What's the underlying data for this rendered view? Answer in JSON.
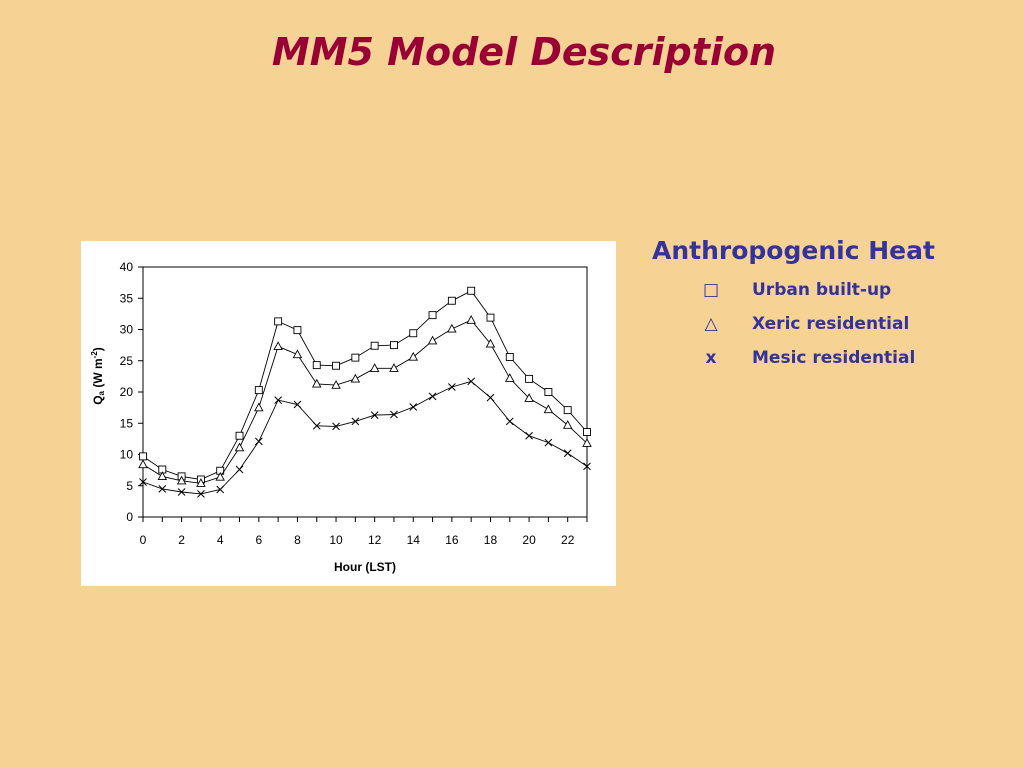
{
  "slide": {
    "title": "MM5 Model Description"
  },
  "legend": {
    "heading": "Anthropogenic Heat",
    "items": [
      {
        "marker": "□",
        "marker_icon": "square-marker-icon",
        "label": "Urban built-up"
      },
      {
        "marker": "△",
        "marker_icon": "triangle-marker-icon",
        "label": "Xeric residential"
      },
      {
        "marker": "x",
        "marker_icon": "cross-marker-icon",
        "label": "Mesic residential"
      }
    ]
  },
  "chart_data": {
    "type": "line",
    "title": "",
    "xlabel": "Hour (LST)",
    "ylabel_main": "Q",
    "ylabel_sub": "a",
    "ylabel_unit": " (W m",
    "ylabel_sup": "-2",
    "ylabel_close": ")",
    "xlim": [
      0,
      23
    ],
    "ylim": [
      0,
      40
    ],
    "x_ticks": [
      0,
      2,
      4,
      6,
      8,
      10,
      12,
      14,
      16,
      18,
      20,
      22
    ],
    "y_ticks": [
      0,
      5,
      10,
      15,
      20,
      25,
      30,
      35,
      40
    ],
    "grid": false,
    "legend_position": "outside-right",
    "x": [
      0,
      1,
      2,
      3,
      4,
      5,
      6,
      7,
      8,
      9,
      10,
      11,
      12,
      13,
      14,
      15,
      16,
      17,
      18,
      19,
      20,
      21,
      22,
      23
    ],
    "series": [
      {
        "name": "Urban built-up",
        "marker": "square",
        "values": [
          9.7,
          7.6,
          6.5,
          6.0,
          7.4,
          13.0,
          20.3,
          31.3,
          29.9,
          24.3,
          24.2,
          25.5,
          27.4,
          27.5,
          29.4,
          32.3,
          34.6,
          36.2,
          31.9,
          25.6,
          22.1,
          20.0,
          17.1,
          13.6
        ]
      },
      {
        "name": "Xeric residential",
        "marker": "triangle",
        "values": [
          8.4,
          6.5,
          5.8,
          5.4,
          6.4,
          11.1,
          17.5,
          27.3,
          26.0,
          21.3,
          21.1,
          22.1,
          23.8,
          23.8,
          25.6,
          28.2,
          30.1,
          31.5,
          27.7,
          22.2,
          19.0,
          17.2,
          14.7,
          11.8
        ]
      },
      {
        "name": "Mesic residential",
        "marker": "cross",
        "values": [
          5.6,
          4.5,
          4.0,
          3.7,
          4.4,
          7.6,
          12.1,
          18.7,
          18.0,
          14.6,
          14.5,
          15.3,
          16.3,
          16.4,
          17.6,
          19.3,
          20.8,
          21.7,
          19.1,
          15.3,
          13.0,
          11.9,
          10.2,
          8.1
        ]
      }
    ],
    "colors": {
      "line": "#000000",
      "axis": "#000000"
    }
  }
}
